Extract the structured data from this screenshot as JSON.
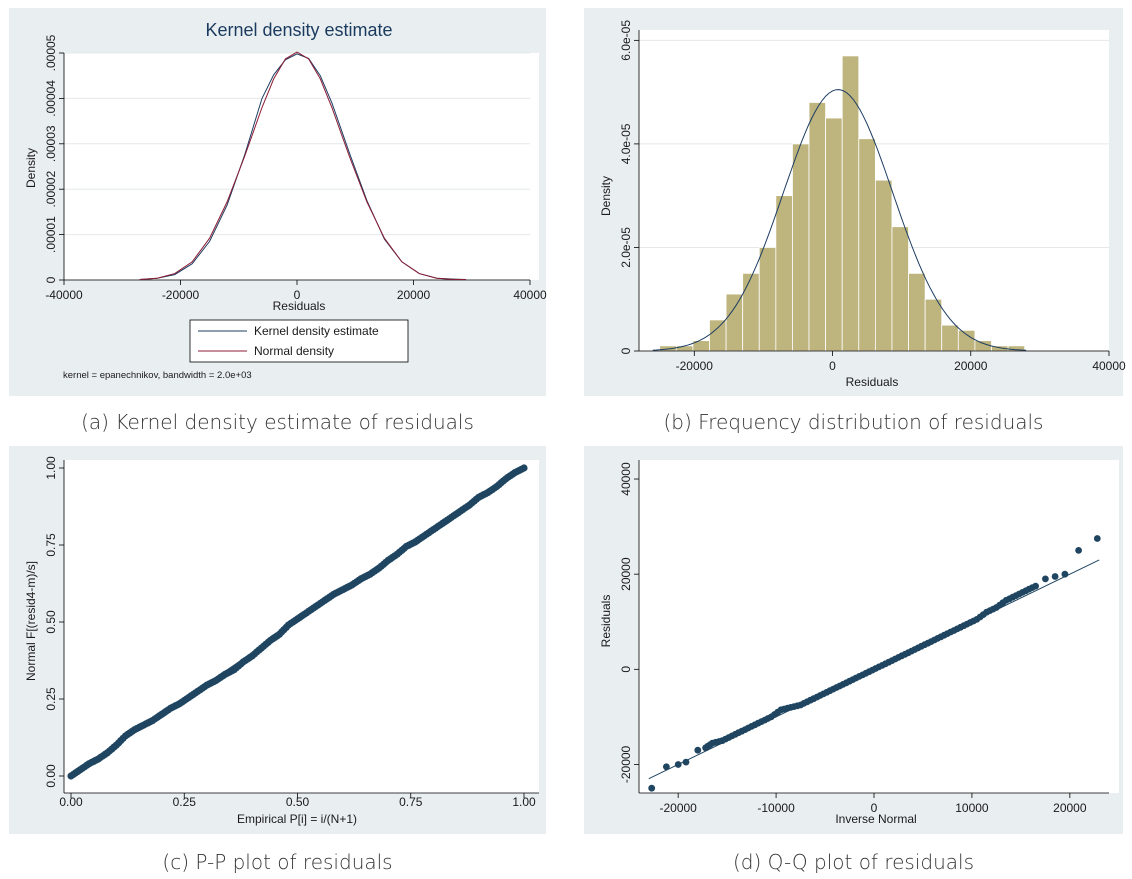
{
  "colors": {
    "panel_bg": "#e9eef1",
    "plot_bg": "#ffffff",
    "grid": "#e4e8ea",
    "axis": "#000000",
    "kde_line": "#1d3d63",
    "normal_line": "#8c1c34",
    "bar_fill": "#beb47d",
    "bar_edge": "#ffffff",
    "marker": "#1f4561",
    "ref_line": "#1f4561"
  },
  "captions": {
    "a": "(a) Kernel density estimate of residuals",
    "b": "(b) Frequency distribution of residuals",
    "c": "(c) P-P plot of residuals",
    "d": "(d) Q-Q plot of residuals"
  },
  "chart_data": [
    {
      "id": "a",
      "type": "line",
      "title": "Kernel density estimate",
      "xlabel": "Residuals",
      "ylabel": "Density",
      "xlim": [
        -40000,
        40000
      ],
      "ylim": [
        0,
        5e-05
      ],
      "xticks": [
        -40000,
        -20000,
        0,
        20000,
        40000
      ],
      "xtick_labels": [
        "-40000",
        "-20000",
        "0",
        "20000",
        "40000"
      ],
      "yticks": [
        0,
        1e-05,
        2e-05,
        3e-05,
        4e-05,
        5e-05
      ],
      "ytick_labels": [
        "0",
        ".00001",
        ".00002",
        ".00003",
        ".00004",
        ".00005"
      ],
      "grid": true,
      "series": [
        {
          "name": "Kernel density estimate",
          "x": [
            -27000,
            -24000,
            -21000,
            -18000,
            -15000,
            -12000,
            -9000,
            -6000,
            -4000,
            -2000,
            0,
            2000,
            4000,
            6000,
            9000,
            12000,
            15000,
            18000,
            21000,
            24000,
            27000,
            29000
          ],
          "y": [
            1e-07,
            4e-07,
            1.2e-06,
            3.6e-06,
            8.5e-06,
            1.65e-05,
            2.75e-05,
            4e-05,
            4.52e-05,
            4.85e-05,
            4.98e-05,
            4.88e-05,
            4.5e-05,
            3.9e-05,
            2.8e-05,
            1.75e-05,
            9e-06,
            4e-06,
            1.4e-06,
            4e-07,
            2e-07,
            1e-07
          ]
        },
        {
          "name": "Normal density",
          "x": [
            -27000,
            -24000,
            -21000,
            -18000,
            -15000,
            -12000,
            -9000,
            -6000,
            -4000,
            -2000,
            0,
            2000,
            4000,
            6000,
            9000,
            12000,
            15000,
            18000,
            21000,
            24000,
            27000,
            29000
          ],
          "y": [
            1e-07,
            4e-07,
            1.4e-06,
            4e-06,
            9.2e-06,
            1.72e-05,
            2.72e-05,
            3.8e-05,
            4.43e-05,
            4.87e-05,
            5.02e-05,
            4.87e-05,
            4.43e-05,
            3.8e-05,
            2.72e-05,
            1.72e-05,
            9.2e-06,
            4e-06,
            1.4e-06,
            4e-07,
            1e-07,
            1e-07
          ]
        }
      ],
      "legend": [
        "Kernel density estimate",
        "Normal density"
      ],
      "note": "kernel = epanechnikov, bandwidth = 2.0e+03"
    },
    {
      "id": "b",
      "type": "bar",
      "xlabel": "Residuals",
      "ylabel": "Density",
      "xlim": [
        -28000,
        40000
      ],
      "ylim": [
        0,
        6.2e-05
      ],
      "xticks": [
        -20000,
        0,
        20000,
        40000
      ],
      "xtick_labels": [
        "-20000",
        "0",
        "20000",
        "40000"
      ],
      "yticks": [
        0,
        2e-05,
        4e-05,
        6e-05
      ],
      "ytick_labels": [
        "0",
        "2.0e-05",
        "4.0e-05",
        "6.0e-05"
      ],
      "bin_width": 2400,
      "bin_starts": [
        -25000,
        -22600,
        -20200,
        -17800,
        -15400,
        -13000,
        -10600,
        -8200,
        -5800,
        -3400,
        -1000,
        1400,
        3800,
        6200,
        8600,
        11000,
        13400,
        15800,
        18200,
        20600,
        23000,
        25400
      ],
      "values": [
        1e-06,
        1e-06,
        2e-06,
        6e-06,
        1.1e-05,
        1.5e-05,
        2e-05,
        3e-05,
        4e-05,
        4.8e-05,
        4.5e-05,
        5.7e-05,
        4.1e-05,
        3.3e-05,
        2.4e-05,
        1.5e-05,
        1e-05,
        5e-06,
        4e-06,
        2e-06,
        1e-06,
        1e-06
      ],
      "normal_curve": {
        "mean": 800,
        "sd": 7900
      }
    },
    {
      "id": "c",
      "type": "scatter",
      "xlabel": "Empirical P[i] = i/(N+1)",
      "ylabel": "Normal F[(resid4-m)/s]",
      "xlim": [
        0,
        1
      ],
      "ylim": [
        0,
        1
      ],
      "xticks": [
        0,
        0.25,
        0.5,
        0.75,
        1
      ],
      "xtick_labels": [
        "0.00",
        "0.25",
        "0.50",
        "0.75",
        "1.00"
      ],
      "yticks": [
        0,
        0.25,
        0.5,
        0.75,
        1
      ],
      "ytick_labels": [
        "0.00",
        "0.25",
        "0.50",
        "0.75",
        "1.00"
      ],
      "reference_line": [
        [
          0,
          0
        ],
        [
          1,
          1
        ]
      ],
      "points_x": [
        0.0,
        0.02,
        0.04,
        0.06,
        0.08,
        0.1,
        0.12,
        0.14,
        0.16,
        0.18,
        0.2,
        0.22,
        0.24,
        0.26,
        0.28,
        0.3,
        0.32,
        0.34,
        0.36,
        0.38,
        0.4,
        0.42,
        0.44,
        0.46,
        0.48,
        0.5,
        0.52,
        0.54,
        0.56,
        0.58,
        0.6,
        0.62,
        0.64,
        0.66,
        0.68,
        0.7,
        0.72,
        0.74,
        0.76,
        0.78,
        0.8,
        0.82,
        0.84,
        0.86,
        0.88,
        0.9,
        0.92,
        0.94,
        0.96,
        0.98,
        1.0
      ],
      "points_y": [
        0.0,
        0.02,
        0.04,
        0.055,
        0.075,
        0.1,
        0.13,
        0.15,
        0.165,
        0.18,
        0.2,
        0.22,
        0.235,
        0.255,
        0.275,
        0.295,
        0.31,
        0.33,
        0.345,
        0.37,
        0.39,
        0.415,
        0.44,
        0.46,
        0.49,
        0.51,
        0.53,
        0.55,
        0.57,
        0.59,
        0.605,
        0.62,
        0.64,
        0.655,
        0.675,
        0.7,
        0.72,
        0.745,
        0.76,
        0.78,
        0.8,
        0.82,
        0.84,
        0.86,
        0.88,
        0.905,
        0.92,
        0.94,
        0.965,
        0.985,
        1.0
      ]
    },
    {
      "id": "d",
      "type": "scatter",
      "xlabel": "Inverse Normal",
      "ylabel": "Residuals",
      "xlim": [
        -24000,
        24000
      ],
      "ylim": [
        -26000,
        44000
      ],
      "xticks": [
        -20000,
        -10000,
        0,
        10000,
        20000
      ],
      "xtick_labels": [
        "-20000",
        "-10000",
        "0",
        "10000",
        "20000"
      ],
      "yticks": [
        -20000,
        0,
        20000,
        40000
      ],
      "ytick_labels": [
        "-20000",
        "0",
        "20000",
        "40000"
      ],
      "reference_line": [
        [
          -23000,
          -23000
        ],
        [
          23000,
          23000
        ]
      ],
      "points_x": [
        -22700,
        -21200,
        -20000,
        -19200,
        -18000,
        -17200,
        -16500,
        -15500,
        -14500,
        -13500,
        -12500,
        -11500,
        -10500,
        -9500,
        -8500,
        -7500,
        -6500,
        -5500,
        -4500,
        -3500,
        -2500,
        -1500,
        -500,
        500,
        1500,
        2500,
        3500,
        4500,
        5500,
        6500,
        7500,
        8500,
        9500,
        10500,
        11500,
        12500,
        13500,
        14500,
        15500,
        16500,
        17500,
        18500,
        19500,
        20900,
        22800
      ],
      "points_y": [
        -25000,
        -20500,
        -20000,
        -19500,
        -17000,
        -16500,
        -15500,
        -15000,
        -14000,
        -13000,
        -12000,
        -11000,
        -10000,
        -8500,
        -8000,
        -7500,
        -6500,
        -5500,
        -4500,
        -3500,
        -2500,
        -1500,
        -500,
        500,
        1500,
        2500,
        3500,
        4500,
        5500,
        6500,
        7500,
        8500,
        9500,
        10500,
        12000,
        13000,
        14500,
        15500,
        16500,
        17500,
        19000,
        19500,
        20000,
        25000,
        27500
      ]
    }
  ]
}
